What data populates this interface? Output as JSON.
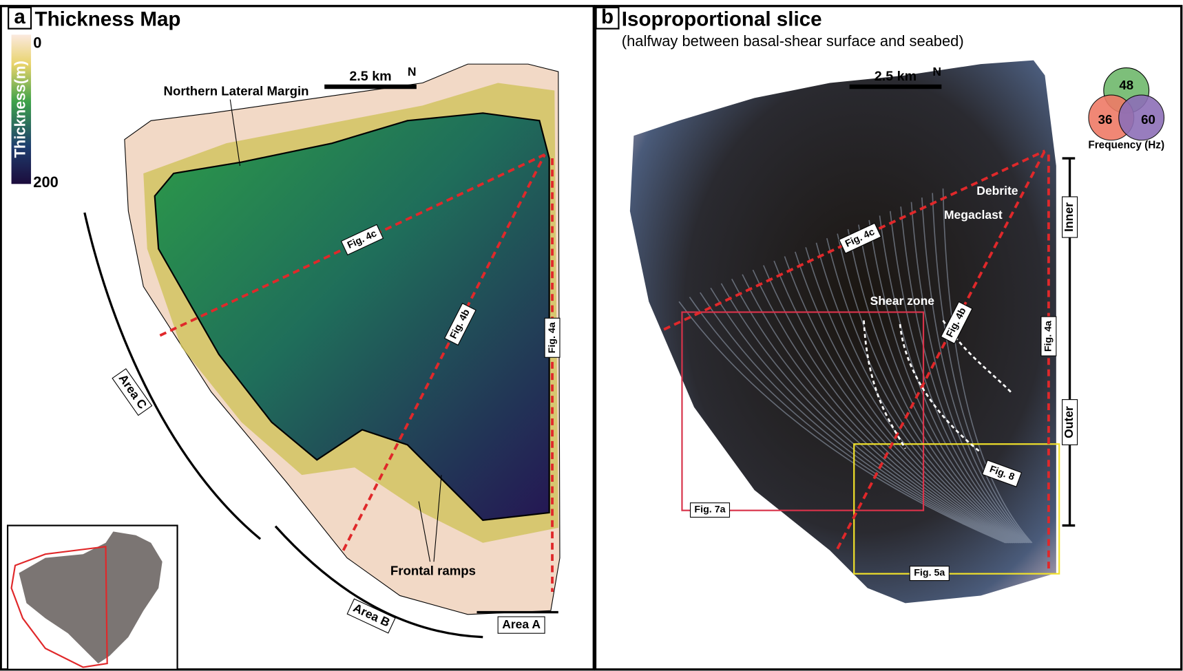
{
  "panel_a": {
    "letter": "a",
    "title": "Thickness Map",
    "colorbar": {
      "label": "Thickness(m)",
      "ticks": [
        0,
        200
      ]
    },
    "scale_bar": "2.5 km",
    "north": "N",
    "labels": {
      "northern_margin": "Northern Lateral Margin",
      "fig4c": "Fig. 4c",
      "fig4b": "Fig. 4b",
      "fig4a": "Fig. 4a",
      "frontal_ramps": "Frontal ramps",
      "area_a": "Area A",
      "area_b": "Area B",
      "area_c": "Area C"
    }
  },
  "panel_b": {
    "letter": "b",
    "title": "Isoproportional slice",
    "subtitle": "(halfway between basal-shear surface and seabed)",
    "scale_bar": "2.5 km",
    "north": "N",
    "labels": {
      "debrite": "Debrite",
      "megaclast": "Megaclast",
      "shear_zone": "Shear zone",
      "fig4c": "Fig. 4c",
      "fig4b": "Fig. 4b",
      "fig4a": "Fig. 4a",
      "fig8": "Fig. 8",
      "fig7a": "Fig. 7a",
      "fig5a": "Fig. 5a",
      "inner": "Inner",
      "outer": "Outer"
    },
    "frequency": {
      "label": "Frequency (Hz)",
      "green": 48,
      "red": 36,
      "blue": 60
    }
  }
}
